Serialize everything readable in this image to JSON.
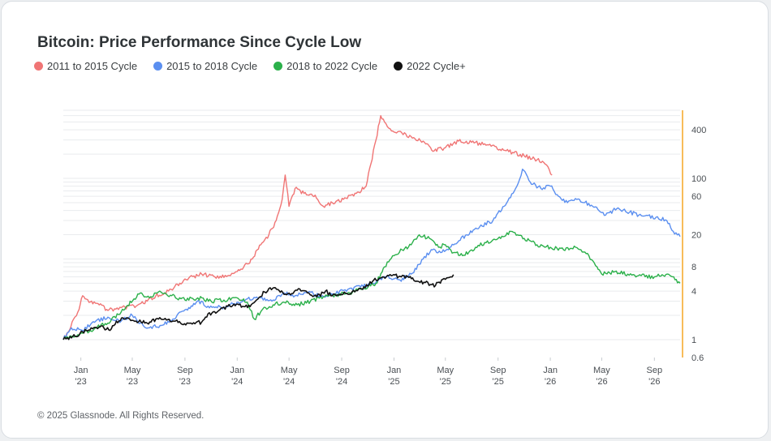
{
  "header": {
    "title": "Bitcoin: Price Performance Since Cycle Low"
  },
  "footer": {
    "copyright": "© 2025 Glassnode. All Rights Reserved."
  },
  "legend": [
    {
      "label": "2011 to 2015 Cycle",
      "color": "#f07575"
    },
    {
      "label": "2015 to 2018 Cycle",
      "color": "#5b8ff0"
    },
    {
      "label": "2018 to 2022 Cycle",
      "color": "#2bb04a"
    },
    {
      "label": "2022 Cycle+",
      "color": "#111111"
    }
  ],
  "chart_data": {
    "type": "line",
    "title": "Bitcoin: Price Performance Since Cycle Low",
    "yscale": "log",
    "ylim": [
      0.6,
      700
    ],
    "xlim": [
      "2022-11-21",
      "2026-10-31"
    ],
    "y_ticks": [
      "0.6",
      "1",
      "4",
      "8",
      "20",
      "60",
      "100",
      "400"
    ],
    "x_ticks": [
      {
        "date": "2023-01-01",
        "label": [
          "Jan",
          "'23"
        ]
      },
      {
        "date": "2023-05-01",
        "label": [
          "May",
          "'23"
        ]
      },
      {
        "date": "2023-09-01",
        "label": [
          "Sep",
          "'23"
        ]
      },
      {
        "date": "2024-01-01",
        "label": [
          "Jan",
          "'24"
        ]
      },
      {
        "date": "2024-05-01",
        "label": [
          "May",
          "'24"
        ]
      },
      {
        "date": "2024-09-01",
        "label": [
          "Sep",
          "'24"
        ]
      },
      {
        "date": "2025-01-01",
        "label": [
          "Jan",
          "'25"
        ]
      },
      {
        "date": "2025-05-01",
        "label": [
          "May",
          "'25"
        ]
      },
      {
        "date": "2025-09-01",
        "label": [
          "Sep",
          "'25"
        ]
      },
      {
        "date": "2026-01-01",
        "label": [
          "Jan",
          "'26"
        ]
      },
      {
        "date": "2026-05-01",
        "label": [
          "May",
          "'26"
        ]
      },
      {
        "date": "2026-09-01",
        "label": [
          "Sep",
          "'26"
        ]
      }
    ],
    "grid": true,
    "legend_position": "top-left",
    "series": [
      {
        "name": "2011 to 2015 Cycle",
        "color": "#f07575",
        "points": [
          [
            "2022-11-21",
            1.0
          ],
          [
            "2022-12-05",
            1.3
          ],
          [
            "2022-12-15",
            1.8
          ],
          [
            "2022-12-25",
            2.2
          ],
          [
            "2023-01-05",
            3.5
          ],
          [
            "2023-01-20",
            2.9
          ],
          [
            "2023-02-10",
            2.8
          ],
          [
            "2023-03-05",
            2.3
          ],
          [
            "2023-04-05",
            2.5
          ],
          [
            "2023-05-10",
            2.6
          ],
          [
            "2023-06-05",
            3.0
          ],
          [
            "2023-06-25",
            3.5
          ],
          [
            "2023-07-15",
            3.8
          ],
          [
            "2023-07-31",
            4.2
          ],
          [
            "2023-08-20",
            5.0
          ],
          [
            "2023-09-10",
            5.8
          ],
          [
            "2023-10-10",
            6.5
          ],
          [
            "2023-11-10",
            6.0
          ],
          [
            "2023-12-10",
            6.2
          ],
          [
            "2024-01-10",
            7.5
          ],
          [
            "2024-02-05",
            10.0
          ],
          [
            "2024-02-25",
            15.0
          ],
          [
            "2024-03-15",
            20.0
          ],
          [
            "2024-04-01",
            30.0
          ],
          [
            "2024-04-15",
            55.0
          ],
          [
            "2024-04-22",
            110.0
          ],
          [
            "2024-05-01",
            45.0
          ],
          [
            "2024-05-15",
            75.0
          ],
          [
            "2024-06-05",
            65.0
          ],
          [
            "2024-07-01",
            62.0
          ],
          [
            "2024-07-20",
            45.0
          ],
          [
            "2024-08-10",
            50.0
          ],
          [
            "2024-09-05",
            55.0
          ],
          [
            "2024-10-05",
            65.0
          ],
          [
            "2024-10-28",
            80.0
          ],
          [
            "2024-11-08",
            150.0
          ],
          [
            "2024-11-20",
            300.0
          ],
          [
            "2024-12-01",
            600.0
          ],
          [
            "2024-12-10",
            500.0
          ],
          [
            "2024-12-20",
            420.0
          ],
          [
            "2025-01-10",
            380.0
          ],
          [
            "2025-02-10",
            330.0
          ],
          [
            "2025-03-10",
            290.0
          ],
          [
            "2025-04-05",
            220.0
          ],
          [
            "2025-05-01",
            240.0
          ],
          [
            "2025-06-01",
            290.0
          ],
          [
            "2025-07-01",
            280.0
          ],
          [
            "2025-08-10",
            260.0
          ],
          [
            "2025-09-20",
            220.0
          ],
          [
            "2025-11-01",
            190.0
          ],
          [
            "2025-12-01",
            170.0
          ],
          [
            "2025-12-20",
            150.0
          ],
          [
            "2026-01-05",
            110.0
          ]
        ]
      },
      {
        "name": "2015 to 2018 Cycle",
        "color": "#5b8ff0",
        "points": [
          [
            "2022-11-21",
            1.0
          ],
          [
            "2022-12-10",
            1.4
          ],
          [
            "2023-01-05",
            1.3
          ],
          [
            "2023-02-05",
            1.7
          ],
          [
            "2023-03-05",
            1.9
          ],
          [
            "2023-04-05",
            1.7
          ],
          [
            "2023-05-01",
            2.0
          ],
          [
            "2023-05-20",
            1.6
          ],
          [
            "2023-06-10",
            1.4
          ],
          [
            "2023-07-05",
            1.5
          ],
          [
            "2023-08-01",
            1.7
          ],
          [
            "2023-08-20",
            2.2
          ],
          [
            "2023-09-10",
            2.5
          ],
          [
            "2023-09-30",
            3.0
          ],
          [
            "2023-10-25",
            2.6
          ],
          [
            "2023-11-25",
            2.5
          ],
          [
            "2023-12-25",
            2.8
          ],
          [
            "2024-01-25",
            3.2
          ],
          [
            "2024-02-25",
            3.3
          ],
          [
            "2024-03-25",
            3.1
          ],
          [
            "2024-04-20",
            3.8
          ],
          [
            "2024-05-15",
            3.5
          ],
          [
            "2024-06-15",
            3.9
          ],
          [
            "2024-07-15",
            3.4
          ],
          [
            "2024-08-15",
            3.7
          ],
          [
            "2024-09-15",
            4.2
          ],
          [
            "2024-10-15",
            4.5
          ],
          [
            "2024-11-15",
            5.0
          ],
          [
            "2024-12-15",
            6.0
          ],
          [
            "2025-01-15",
            5.5
          ],
          [
            "2025-02-10",
            6.5
          ],
          [
            "2025-03-10",
            10.0
          ],
          [
            "2025-04-01",
            13.0
          ],
          [
            "2025-04-20",
            12.0
          ],
          [
            "2025-05-20",
            15.0
          ],
          [
            "2025-06-20",
            20.0
          ],
          [
            "2025-07-20",
            25.0
          ],
          [
            "2025-08-20",
            30.0
          ],
          [
            "2025-09-15",
            45.0
          ],
          [
            "2025-10-15",
            80.0
          ],
          [
            "2025-10-28",
            130.0
          ],
          [
            "2025-11-15",
            90.0
          ],
          [
            "2025-12-10",
            75.0
          ],
          [
            "2026-01-01",
            80.0
          ],
          [
            "2026-01-20",
            60.0
          ],
          [
            "2026-02-10",
            50.0
          ],
          [
            "2026-03-10",
            55.0
          ],
          [
            "2026-04-10",
            45.0
          ],
          [
            "2026-05-10",
            35.0
          ],
          [
            "2026-06-05",
            42.0
          ],
          [
            "2026-07-05",
            38.0
          ],
          [
            "2026-08-05",
            34.0
          ],
          [
            "2026-09-05",
            33.0
          ],
          [
            "2026-09-30",
            30.0
          ],
          [
            "2026-10-15",
            22.0
          ],
          [
            "2026-10-31",
            19.0
          ]
        ]
      },
      {
        "name": "2018 to 2022 Cycle",
        "color": "#2bb04a",
        "points": [
          [
            "2022-11-21",
            1.0
          ],
          [
            "2022-12-10",
            1.1
          ],
          [
            "2023-01-05",
            1.2
          ],
          [
            "2023-02-05",
            1.4
          ],
          [
            "2023-03-05",
            1.6
          ],
          [
            "2023-04-05",
            2.2
          ],
          [
            "2023-05-05",
            3.2
          ],
          [
            "2023-05-20",
            3.8
          ],
          [
            "2023-06-10",
            3.3
          ],
          [
            "2023-07-01",
            3.9
          ],
          [
            "2023-08-01",
            3.5
          ],
          [
            "2023-09-01",
            3.1
          ],
          [
            "2023-10-01",
            3.3
          ],
          [
            "2023-11-01",
            3.0
          ],
          [
            "2023-12-01",
            3.1
          ],
          [
            "2024-01-01",
            3.3
          ],
          [
            "2024-01-25",
            2.9
          ],
          [
            "2024-02-10",
            1.8
          ],
          [
            "2024-03-01",
            2.4
          ],
          [
            "2024-03-25",
            2.7
          ],
          [
            "2024-04-20",
            2.9
          ],
          [
            "2024-05-20",
            2.7
          ],
          [
            "2024-06-20",
            3.0
          ],
          [
            "2024-07-20",
            3.4
          ],
          [
            "2024-08-20",
            3.6
          ],
          [
            "2024-09-20",
            3.8
          ],
          [
            "2024-10-20",
            4.3
          ],
          [
            "2024-11-20",
            5.0
          ],
          [
            "2024-12-10",
            8.0
          ],
          [
            "2025-01-01",
            11.0
          ],
          [
            "2025-01-20",
            13.0
          ],
          [
            "2025-02-10",
            15.0
          ],
          [
            "2025-03-01",
            20.0
          ],
          [
            "2025-03-25",
            18.0
          ],
          [
            "2025-04-15",
            14.0
          ],
          [
            "2025-05-01",
            15.0
          ],
          [
            "2025-05-20",
            12.0
          ],
          [
            "2025-06-10",
            11.0
          ],
          [
            "2025-07-01",
            13.0
          ],
          [
            "2025-08-01",
            16.0
          ],
          [
            "2025-09-01",
            18.0
          ],
          [
            "2025-10-01",
            22.0
          ],
          [
            "2025-11-01",
            18.0
          ],
          [
            "2025-12-01",
            15.0
          ],
          [
            "2026-01-01",
            14.0
          ],
          [
            "2026-02-01",
            13.0
          ],
          [
            "2026-03-01",
            14.0
          ],
          [
            "2026-04-01",
            11.0
          ],
          [
            "2026-04-20",
            8.0
          ],
          [
            "2026-05-01",
            6.5
          ],
          [
            "2026-06-01",
            7.0
          ],
          [
            "2026-07-01",
            6.5
          ],
          [
            "2026-08-01",
            6.2
          ],
          [
            "2026-09-01",
            6.0
          ],
          [
            "2026-10-01",
            6.5
          ],
          [
            "2026-10-31",
            5.0
          ]
        ]
      },
      {
        "name": "2022 Cycle+",
        "color": "#111111",
        "points": [
          [
            "2022-11-21",
            1.0
          ],
          [
            "2022-12-10",
            1.05
          ],
          [
            "2023-01-05",
            1.25
          ],
          [
            "2023-01-25",
            1.4
          ],
          [
            "2023-02-15",
            1.45
          ],
          [
            "2023-03-10",
            1.3
          ],
          [
            "2023-03-25",
            1.7
          ],
          [
            "2023-04-15",
            1.8
          ],
          [
            "2023-05-10",
            1.7
          ],
          [
            "2023-06-05",
            1.6
          ],
          [
            "2023-06-25",
            1.8
          ],
          [
            "2023-07-20",
            1.75
          ],
          [
            "2023-08-10",
            1.7
          ],
          [
            "2023-08-25",
            1.55
          ],
          [
            "2023-09-15",
            1.6
          ],
          [
            "2023-10-10",
            1.65
          ],
          [
            "2023-10-25",
            2.1
          ],
          [
            "2023-11-15",
            2.2
          ],
          [
            "2023-12-10",
            2.6
          ],
          [
            "2024-01-05",
            2.7
          ],
          [
            "2024-01-25",
            2.5
          ],
          [
            "2024-02-15",
            3.1
          ],
          [
            "2024-03-05",
            3.9
          ],
          [
            "2024-03-15",
            4.3
          ],
          [
            "2024-04-05",
            4.2
          ],
          [
            "2024-04-25",
            3.6
          ],
          [
            "2024-05-20",
            4.1
          ],
          [
            "2024-06-10",
            4.0
          ],
          [
            "2024-07-05",
            3.4
          ],
          [
            "2024-07-25",
            4.0
          ],
          [
            "2024-08-10",
            3.5
          ],
          [
            "2024-09-01",
            3.6
          ],
          [
            "2024-09-25",
            3.9
          ],
          [
            "2024-10-20",
            4.2
          ],
          [
            "2024-11-12",
            5.3
          ],
          [
            "2024-12-05",
            6.0
          ],
          [
            "2024-12-20",
            6.2
          ],
          [
            "2025-01-15",
            6.1
          ],
          [
            "2025-02-05",
            5.9
          ],
          [
            "2025-02-25",
            5.3
          ],
          [
            "2025-03-15",
            5.1
          ],
          [
            "2025-04-08",
            4.7
          ],
          [
            "2025-04-25",
            5.6
          ],
          [
            "2025-05-10",
            5.9
          ],
          [
            "2025-05-20",
            6.4
          ]
        ]
      }
    ]
  }
}
